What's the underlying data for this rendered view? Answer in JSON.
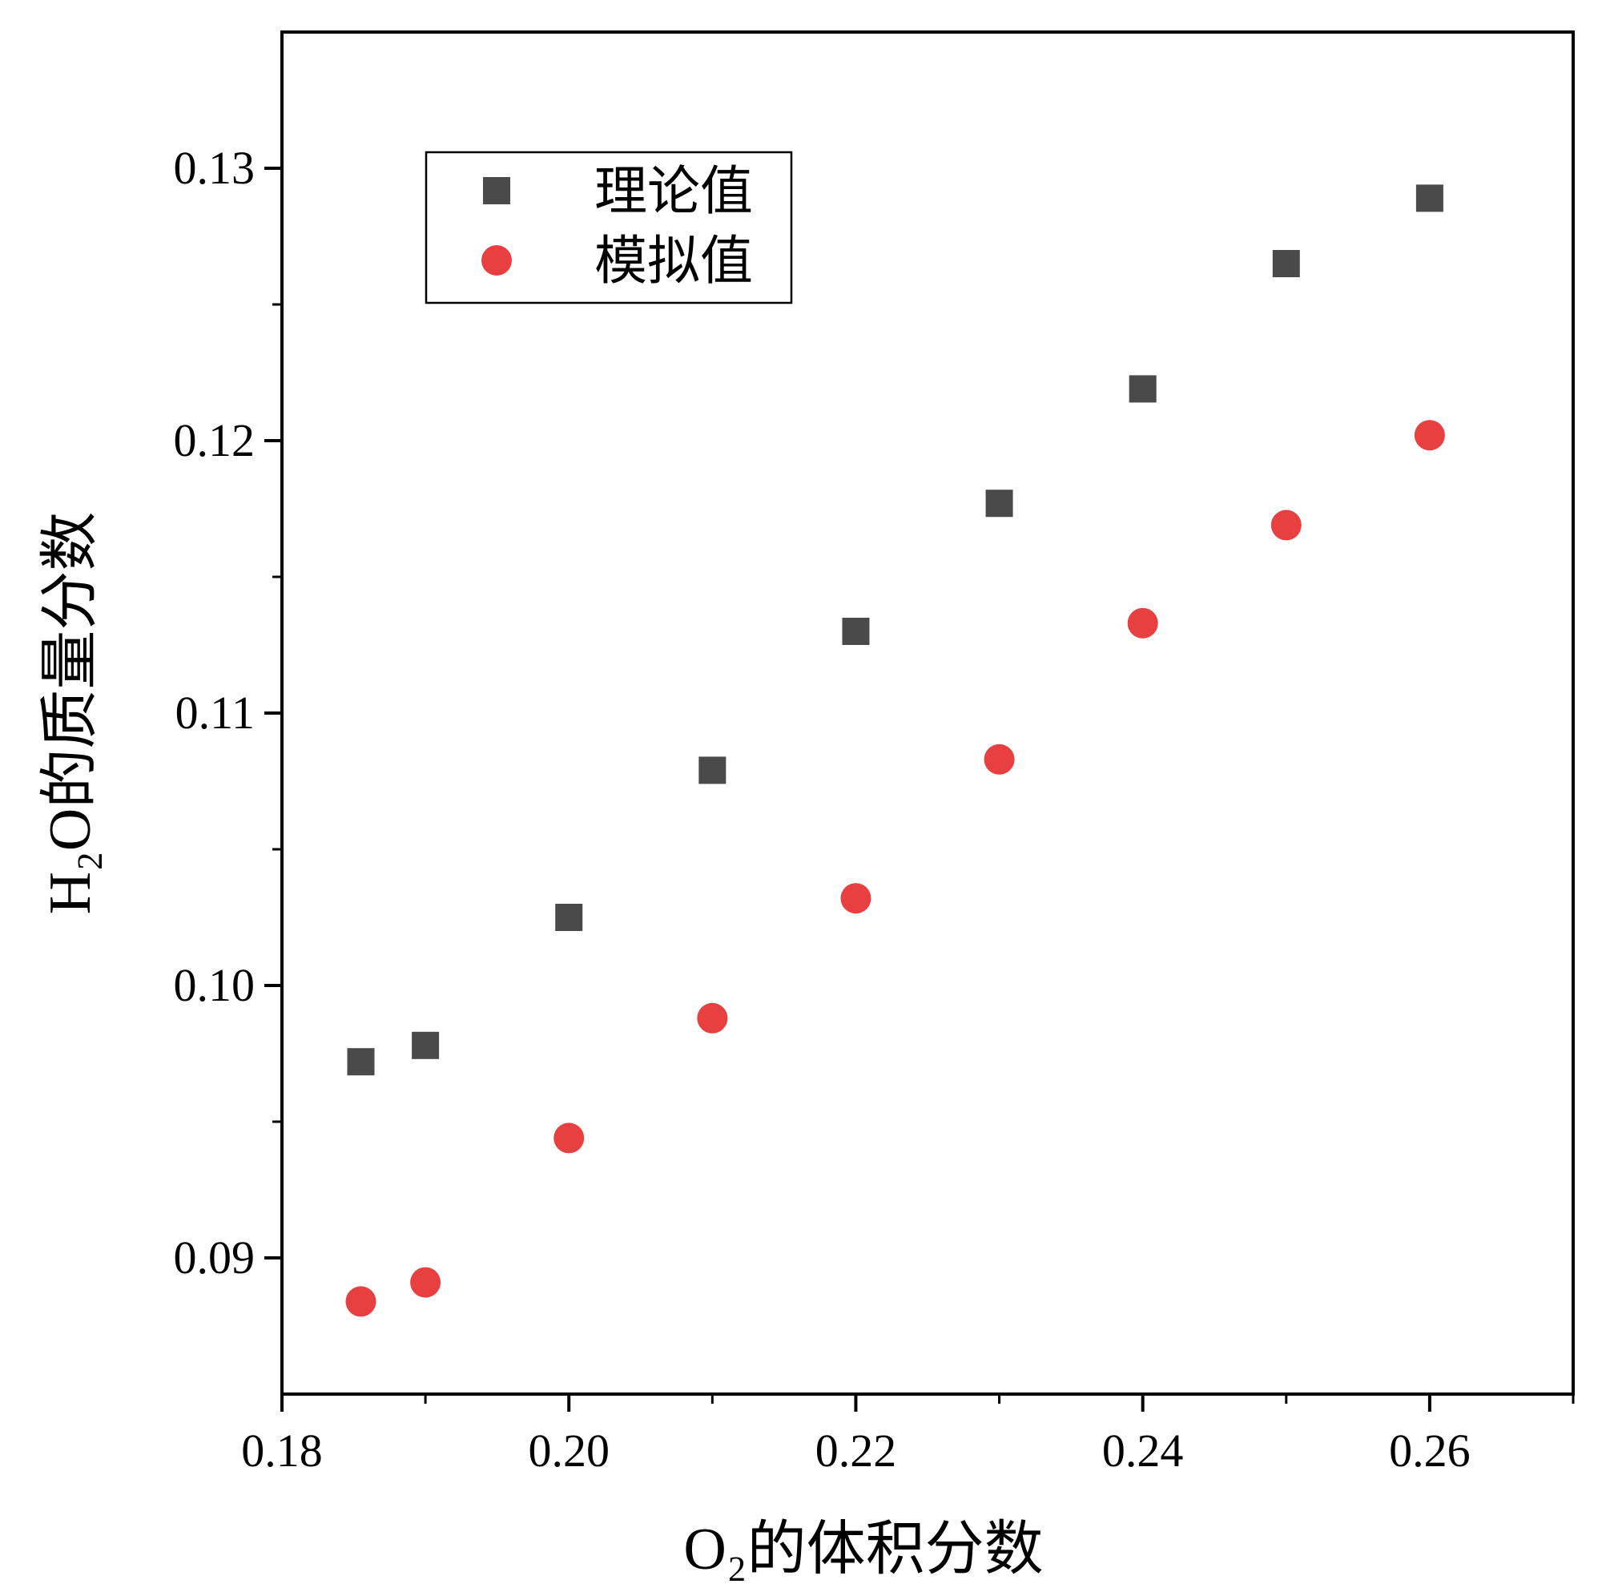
{
  "chart_data": {
    "type": "scatter",
    "xlabel": "O₂的体积分数",
    "ylabel": "H₂O的质量分数",
    "xlim": [
      0.18,
      0.27
    ],
    "ylim": [
      0.085,
      0.135
    ],
    "xticks": [
      "0.18",
      "0.20",
      "0.22",
      "0.24",
      "0.26"
    ],
    "yticks": [
      "0.09",
      "0.10",
      "0.11",
      "0.12",
      "0.13"
    ],
    "legend_position": "top-left",
    "series": [
      {
        "name": "理论值",
        "marker": "square",
        "color": "#4a4a4a",
        "x": [
          0.1855,
          0.19,
          0.2,
          0.21,
          0.22,
          0.23,
          0.24,
          0.25,
          0.26
        ],
        "y": [
          0.0972,
          0.0978,
          0.1025,
          0.1079,
          0.113,
          0.1177,
          0.1219,
          0.1265,
          0.1289
        ]
      },
      {
        "name": "模拟值",
        "marker": "circle",
        "color": "#e84040",
        "x": [
          0.1855,
          0.19,
          0.2,
          0.21,
          0.22,
          0.23,
          0.24,
          0.25,
          0.26
        ],
        "y": [
          0.0884,
          0.0891,
          0.0944,
          0.0988,
          0.1032,
          0.1083,
          0.1133,
          0.1169,
          0.1202
        ]
      }
    ]
  }
}
